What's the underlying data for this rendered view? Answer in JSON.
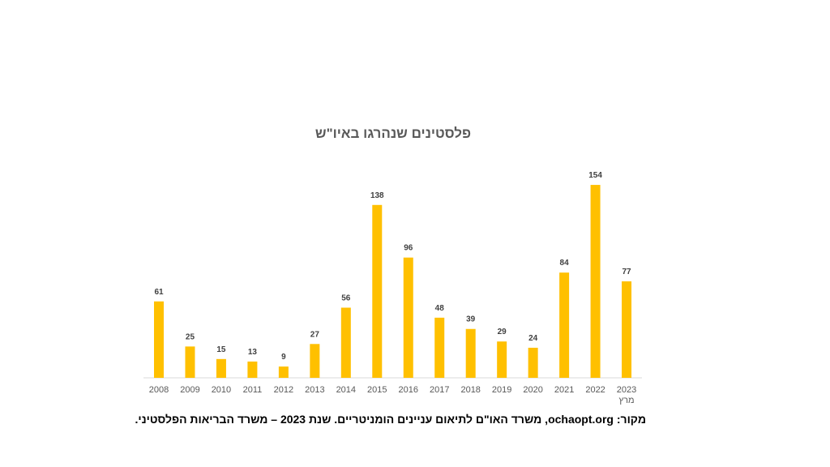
{
  "chart_data": {
    "type": "bar",
    "title": "פלסטינים שנהרגו באיו\"ש",
    "categories": [
      "2008",
      "2009",
      "2010",
      "2011",
      "2012",
      "2013",
      "2014",
      "2015",
      "2016",
      "2017",
      "2018",
      "2019",
      "2020",
      "2021",
      "2022",
      "2023"
    ],
    "category_note": "מרץ",
    "values": [
      61,
      25,
      15,
      13,
      9,
      27,
      56,
      138,
      96,
      48,
      39,
      29,
      24,
      84,
      154,
      77
    ],
    "color": "#ffc000"
  },
  "source": "מקור: ochaopt.org, משרד האו\"ם לתיאום עניינים הומניטריים. שנת 2023 – משרד הבריאות הפלסטיני."
}
